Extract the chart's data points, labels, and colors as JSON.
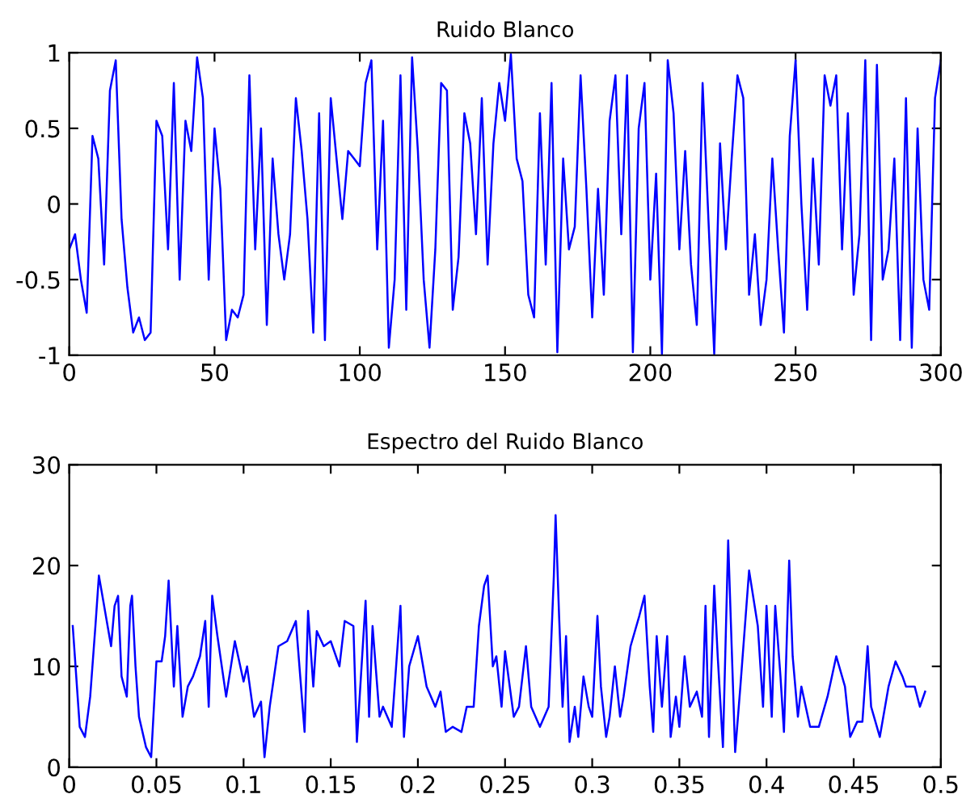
{
  "chart_data": [
    {
      "type": "line",
      "title": "Ruido Blanco",
      "xlim": [
        0,
        300
      ],
      "ylim": [
        -1,
        1
      ],
      "xticks": [
        0,
        50,
        100,
        150,
        200,
        250,
        300
      ],
      "yticks": [
        -1,
        -0.5,
        0,
        0.5,
        1
      ],
      "grid": false,
      "series": [
        {
          "color": "#0000ff",
          "x": [
            0,
            2,
            4,
            6,
            8,
            10,
            12,
            14,
            16,
            18,
            20,
            22,
            24,
            26,
            28,
            30,
            32,
            34,
            36,
            38,
            40,
            42,
            44,
            46,
            48,
            50,
            52,
            54,
            56,
            58,
            60,
            62,
            64,
            66,
            68,
            70,
            72,
            74,
            76,
            78,
            80,
            82,
            84,
            86,
            88,
            90,
            92,
            94,
            96,
            98,
            100,
            102,
            104,
            106,
            108,
            110,
            112,
            114,
            116,
            118,
            120,
            122,
            124,
            126,
            128,
            130,
            132,
            134,
            136,
            138,
            140,
            142,
            144,
            146,
            148,
            150,
            152,
            154,
            156,
            158,
            160,
            162,
            164,
            166,
            168,
            170,
            172,
            174,
            176,
            178,
            180,
            182,
            184,
            186,
            188,
            190,
            192,
            194,
            196,
            198,
            200,
            202,
            204,
            206,
            208,
            210,
            212,
            214,
            216,
            218,
            220,
            222,
            224,
            226,
            228,
            230,
            232,
            234,
            236,
            238,
            240,
            242,
            244,
            246,
            248,
            250,
            252,
            254,
            256,
            258,
            260,
            262,
            264,
            266,
            268,
            270,
            272,
            274,
            276,
            278,
            280,
            282,
            284,
            286,
            288,
            290,
            292,
            294,
            296,
            298,
            300
          ],
          "values": [
            -0.3,
            -0.2,
            -0.5,
            -0.72,
            0.45,
            0.3,
            -0.4,
            0.75,
            0.95,
            -0.1,
            -0.55,
            -0.85,
            -0.75,
            -0.9,
            -0.85,
            0.55,
            0.45,
            -0.3,
            0.8,
            -0.5,
            0.55,
            0.35,
            0.97,
            0.7,
            -0.5,
            0.5,
            0.1,
            -0.9,
            -0.7,
            -0.75,
            -0.6,
            0.85,
            -0.3,
            0.5,
            -0.8,
            0.3,
            -0.2,
            -0.5,
            -0.2,
            0.7,
            0.35,
            -0.1,
            -0.85,
            0.6,
            -0.9,
            0.7,
            0.3,
            -0.1,
            0.35,
            0.3,
            0.25,
            0.8,
            0.95,
            -0.3,
            0.55,
            -0.95,
            -0.5,
            0.85,
            -0.7,
            0.97,
            0.35,
            -0.5,
            -0.95,
            -0.3,
            0.8,
            0.75,
            -0.7,
            -0.35,
            0.6,
            0.4,
            -0.2,
            0.7,
            -0.4,
            0.4,
            0.8,
            0.55,
            0.99,
            0.3,
            0.15,
            -0.6,
            -0.75,
            0.6,
            -0.4,
            0.8,
            -0.98,
            0.3,
            -0.3,
            -0.15,
            0.85,
            0.1,
            -0.75,
            0.1,
            -0.6,
            0.55,
            0.85,
            -0.2,
            0.85,
            -0.98,
            0.5,
            0.8,
            -0.5,
            0.2,
            -0.99,
            0.95,
            0.6,
            -0.3,
            0.35,
            -0.4,
            -0.8,
            0.8,
            -0.1,
            -0.99,
            0.4,
            -0.3,
            0.3,
            0.85,
            0.7,
            -0.6,
            -0.2,
            -0.8,
            -0.5,
            0.3,
            -0.3,
            -0.85,
            0.45,
            0.95,
            0.0,
            -0.7,
            0.3,
            -0.4,
            0.85,
            0.65,
            0.85,
            -0.3,
            0.6,
            -0.6,
            -0.2,
            0.95,
            -0.9,
            0.92,
            -0.5,
            -0.3,
            0.3,
            -0.9,
            0.7,
            -0.95,
            0.5,
            -0.5,
            -0.7,
            0.7,
            0.95
          ]
        }
      ]
    },
    {
      "type": "line",
      "title": "Espectro del Ruido Blanco",
      "xlim": [
        0,
        0.5
      ],
      "ylim": [
        0,
        30
      ],
      "xticks": [
        0,
        0.05,
        0.1,
        0.15,
        0.2,
        0.25,
        0.3,
        0.35,
        0.4,
        0.45,
        0.5
      ],
      "yticks": [
        0,
        10,
        20,
        30
      ],
      "grid": false,
      "series": [
        {
          "color": "#0000ff",
          "x": [
            0.002,
            0.004,
            0.006,
            0.009,
            0.012,
            0.015,
            0.017,
            0.02,
            0.024,
            0.026,
            0.028,
            0.03,
            0.033,
            0.035,
            0.036,
            0.038,
            0.04,
            0.044,
            0.047,
            0.05,
            0.053,
            0.055,
            0.057,
            0.06,
            0.062,
            0.065,
            0.068,
            0.071,
            0.075,
            0.078,
            0.08,
            0.082,
            0.085,
            0.09,
            0.095,
            0.1,
            0.102,
            0.106,
            0.11,
            0.112,
            0.115,
            0.12,
            0.125,
            0.13,
            0.135,
            0.137,
            0.14,
            0.142,
            0.146,
            0.15,
            0.155,
            0.158,
            0.163,
            0.165,
            0.17,
            0.172,
            0.174,
            0.178,
            0.18,
            0.185,
            0.19,
            0.192,
            0.195,
            0.2,
            0.205,
            0.21,
            0.213,
            0.216,
            0.22,
            0.225,
            0.228,
            0.232,
            0.235,
            0.238,
            0.24,
            0.243,
            0.245,
            0.248,
            0.25,
            0.255,
            0.258,
            0.262,
            0.265,
            0.27,
            0.275,
            0.278,
            0.279,
            0.281,
            0.283,
            0.285,
            0.287,
            0.29,
            0.292,
            0.295,
            0.298,
            0.3,
            0.303,
            0.305,
            0.308,
            0.31,
            0.313,
            0.316,
            0.318,
            0.322,
            0.327,
            0.33,
            0.333,
            0.335,
            0.337,
            0.34,
            0.343,
            0.345,
            0.348,
            0.35,
            0.353,
            0.356,
            0.36,
            0.363,
            0.365,
            0.367,
            0.37,
            0.372,
            0.375,
            0.378,
            0.38,
            0.382,
            0.385,
            0.39,
            0.395,
            0.398,
            0.4,
            0.403,
            0.405,
            0.408,
            0.41,
            0.413,
            0.415,
            0.418,
            0.42,
            0.425,
            0.43,
            0.435,
            0.44,
            0.445,
            0.448,
            0.452,
            0.455,
            0.458,
            0.46,
            0.465,
            0.47,
            0.474,
            0.478,
            0.48,
            0.485,
            0.488,
            0.491
          ],
          "values": [
            14,
            9,
            4,
            3,
            7,
            14,
            19,
            16,
            12,
            16,
            17,
            9,
            7,
            16,
            17,
            10,
            5,
            2,
            1,
            10.5,
            10.5,
            13,
            18.5,
            8,
            14,
            5,
            8,
            9,
            11,
            14.5,
            6,
            17,
            13,
            7,
            12.5,
            8.5,
            10,
            5,
            6.5,
            1,
            6,
            12,
            12.5,
            14.5,
            3.5,
            15.5,
            8,
            13.5,
            12,
            12.5,
            10,
            14.5,
            14,
            2.5,
            16.5,
            5,
            14,
            5,
            6,
            4,
            16,
            3,
            10,
            13,
            8,
            6,
            7.5,
            3.5,
            4,
            3.5,
            6,
            6,
            14,
            18,
            19,
            10,
            11,
            6,
            11.5,
            5,
            6,
            12,
            6,
            4,
            6,
            19,
            25,
            15,
            6,
            13,
            2.5,
            6,
            3,
            9,
            6,
            5,
            15,
            8,
            3,
            5,
            10,
            5,
            7,
            12,
            15,
            17,
            8,
            3.5,
            13,
            6,
            13,
            3,
            7,
            4,
            11,
            6,
            7.5,
            5,
            16,
            3,
            18,
            11,
            2,
            22.5,
            12,
            1.5,
            8,
            19.5,
            14,
            6,
            16,
            5,
            16,
            9,
            3.5,
            20.5,
            11,
            5,
            8,
            4,
            4,
            7,
            11,
            8,
            3,
            4.5,
            4.5,
            12,
            6,
            3,
            8,
            10.5,
            9,
            8,
            8,
            6,
            7.5
          ]
        }
      ]
    }
  ]
}
